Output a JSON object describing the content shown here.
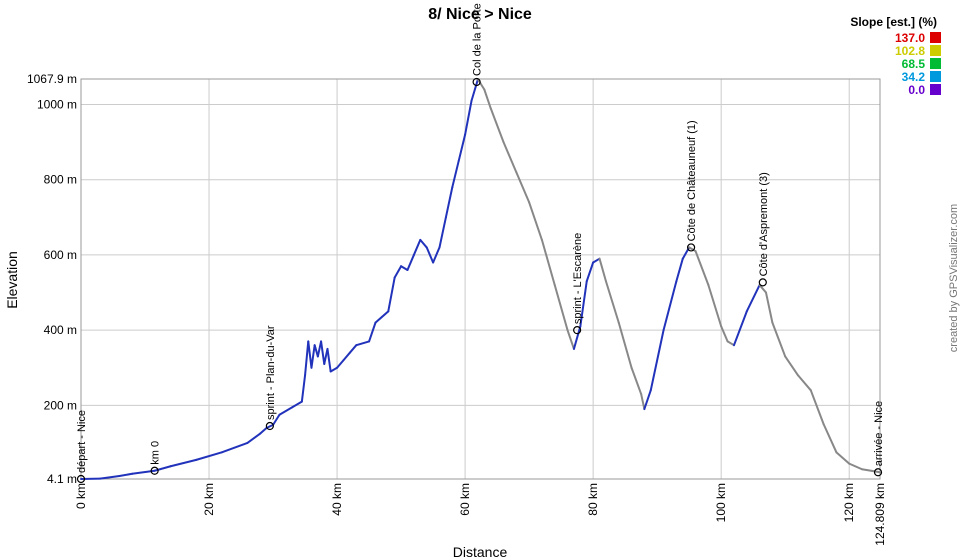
{
  "chart_data": {
    "type": "line",
    "title": "8/ Nice > Nice",
    "xlabel": "Distance",
    "ylabel": "Elevation",
    "xlim": [
      0,
      124.809
    ],
    "ylim": [
      4.1,
      1067.9
    ],
    "x_ticks": [
      {
        "value": 0,
        "label": "0 km"
      },
      {
        "value": 20,
        "label": "20 km"
      },
      {
        "value": 40,
        "label": "40 km"
      },
      {
        "value": 60,
        "label": "60 km"
      },
      {
        "value": 80,
        "label": "80 km"
      },
      {
        "value": 100,
        "label": "100 km"
      },
      {
        "value": 120,
        "label": "120 km"
      },
      {
        "value": 124.809,
        "label": "124.809 km"
      }
    ],
    "y_ticks": [
      {
        "value": 4.1,
        "label": "4.1 m"
      },
      {
        "value": 200,
        "label": "200 m"
      },
      {
        "value": 400,
        "label": "400 m"
      },
      {
        "value": 600,
        "label": "600 m"
      },
      {
        "value": 800,
        "label": "800 m"
      },
      {
        "value": 1000,
        "label": "1000 m"
      },
      {
        "value": 1067.9,
        "label": "1067.9 m"
      }
    ],
    "grid": true,
    "profile": [
      [
        0,
        4
      ],
      [
        3,
        5
      ],
      [
        6,
        12
      ],
      [
        8,
        18
      ],
      [
        11.5,
        26
      ],
      [
        14,
        38
      ],
      [
        18,
        55
      ],
      [
        22,
        75
      ],
      [
        26,
        100
      ],
      [
        28,
        125
      ],
      [
        29,
        140
      ],
      [
        30,
        148
      ],
      [
        31,
        175
      ],
      [
        33,
        195
      ],
      [
        34.5,
        210
      ],
      [
        35,
        280
      ],
      [
        35.5,
        370
      ],
      [
        36,
        300
      ],
      [
        36.5,
        360
      ],
      [
        37,
        330
      ],
      [
        37.5,
        370
      ],
      [
        38,
        310
      ],
      [
        38.5,
        350
      ],
      [
        39,
        290
      ],
      [
        40,
        300
      ],
      [
        41,
        320
      ],
      [
        42,
        340
      ],
      [
        43,
        360
      ],
      [
        45,
        370
      ],
      [
        46,
        420
      ],
      [
        48,
        450
      ],
      [
        49,
        540
      ],
      [
        50,
        570
      ],
      [
        51,
        560
      ],
      [
        52,
        600
      ],
      [
        53,
        640
      ],
      [
        54,
        620
      ],
      [
        55,
        580
      ],
      [
        56,
        620
      ],
      [
        57,
        700
      ],
      [
        58,
        780
      ],
      [
        59,
        850
      ],
      [
        60,
        920
      ],
      [
        61,
        1010
      ],
      [
        62,
        1067
      ],
      [
        63,
        1040
      ],
      [
        64,
        990
      ],
      [
        66,
        900
      ],
      [
        68,
        820
      ],
      [
        70,
        740
      ],
      [
        72,
        640
      ],
      [
        74,
        520
      ],
      [
        76,
        400
      ],
      [
        77,
        350
      ],
      [
        78,
        410
      ],
      [
        79,
        530
      ],
      [
        80,
        580
      ],
      [
        81,
        590
      ],
      [
        82,
        530
      ],
      [
        84,
        420
      ],
      [
        86,
        300
      ],
      [
        87.5,
        230
      ],
      [
        88,
        190
      ],
      [
        89,
        240
      ],
      [
        91,
        400
      ],
      [
        93,
        530
      ],
      [
        94,
        590
      ],
      [
        95,
        620
      ],
      [
        96,
        610
      ],
      [
        98,
        520
      ],
      [
        100,
        410
      ],
      [
        101,
        370
      ],
      [
        102,
        360
      ],
      [
        104,
        450
      ],
      [
        106,
        520
      ],
      [
        107,
        500
      ],
      [
        108,
        420
      ],
      [
        110,
        330
      ],
      [
        112,
        280
      ],
      [
        114,
        240
      ],
      [
        116,
        150
      ],
      [
        118,
        75
      ],
      [
        120,
        45
      ],
      [
        122,
        30
      ],
      [
        124.809,
        22
      ]
    ],
    "waypoints": [
      {
        "x": 0,
        "y": 4.1,
        "label": "départ - Nice"
      },
      {
        "x": 11.5,
        "y": 26,
        "label": "km 0"
      },
      {
        "x": 29.5,
        "y": 145,
        "label": "sprint - Plan-du-Var"
      },
      {
        "x": 61.8,
        "y": 1060,
        "label": "Col de la Porte"
      },
      {
        "x": 77.5,
        "y": 400,
        "label": "sprint - L'Escarène"
      },
      {
        "x": 95.3,
        "y": 620,
        "label": "Côte de Châteauneuf (1)"
      },
      {
        "x": 106.5,
        "y": 527,
        "label": "Côte d'Aspremont (3)"
      },
      {
        "x": 124.5,
        "y": 22,
        "label": "arrivée - Nice"
      }
    ],
    "legend": {
      "title": "Slope [est.] (%)",
      "placement": "top-right",
      "items": [
        {
          "label": "137.0",
          "color": "#dd0000"
        },
        {
          "label": "102.8",
          "color": "#cccc00"
        },
        {
          "label": "68.5",
          "color": "#00bb33"
        },
        {
          "label": "34.2",
          "color": "#0099dd"
        },
        {
          "label": "0.0",
          "color": "#6600cc"
        }
      ]
    }
  },
  "credit": "created by GPSVisualizer.com",
  "colors": {
    "line_main": "#2233bb",
    "line_descent": "#888888",
    "grid": "#cccccc"
  }
}
